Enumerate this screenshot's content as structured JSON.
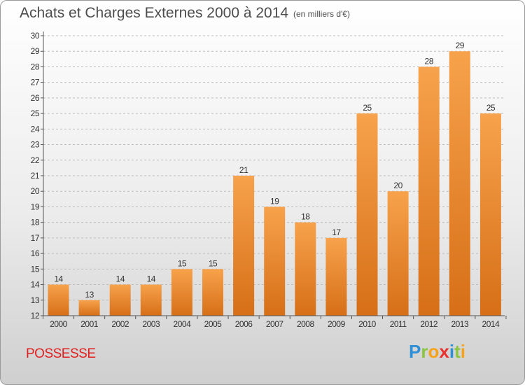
{
  "title": "Achats et Charges Externes 2000 à 2014",
  "subtitle": "(en milliers d'€)",
  "commune": "POSSESSE",
  "logo": {
    "text": "Proxiti",
    "letters": [
      {
        "ch": "P",
        "color": "#2f8fd6"
      },
      {
        "ch": "r",
        "color": "#8cc63f"
      },
      {
        "ch": "o",
        "color": "#f7a21b"
      },
      {
        "ch": "x",
        "color": "#e8322e"
      },
      {
        "ch": "i",
        "color": "#2f8fd6"
      },
      {
        "ch": "t",
        "color": "#8cc63f"
      },
      {
        "ch": "i",
        "color": "#f7a21b"
      }
    ]
  },
  "colors": {
    "bar_light": "#f7a24c",
    "bar_dark": "#d66f17",
    "axis": "#555555",
    "grid": "#bdbdbd"
  },
  "chart_data": {
    "type": "bar",
    "categories": [
      "2000",
      "2001",
      "2002",
      "2003",
      "2004",
      "2005",
      "2006",
      "2007",
      "2008",
      "2009",
      "2010",
      "2011",
      "2012",
      "2013",
      "2014"
    ],
    "values": [
      14,
      13,
      14,
      14,
      15,
      15,
      21,
      19,
      18,
      17,
      25,
      20,
      28,
      29,
      25
    ],
    "title": "Achats et Charges Externes 2000 à 2014",
    "ylim": [
      12,
      30
    ],
    "yticks": [
      12,
      13,
      14,
      15,
      16,
      17,
      18,
      19,
      20,
      21,
      22,
      23,
      24,
      25,
      26,
      27,
      28,
      29,
      30
    ],
    "grid": true
  }
}
